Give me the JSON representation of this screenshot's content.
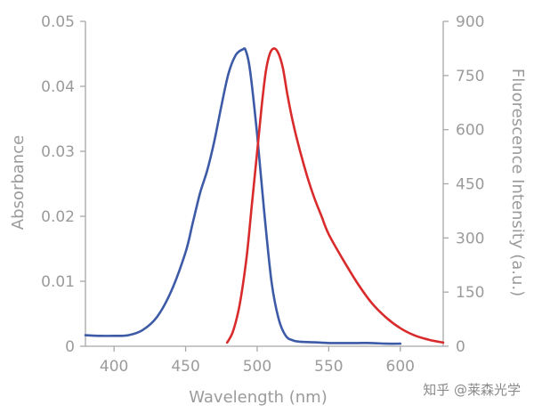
{
  "chart_data": {
    "type": "line",
    "xlabel": "Wavelength (nm)",
    "ylabel_left": "Absorbance",
    "ylabel_right": "Fluorescence Intensity (a.u.)",
    "xlim": [
      380,
      630
    ],
    "ylim_left": [
      0,
      0.05
    ],
    "ylim_right": [
      0,
      900
    ],
    "x_ticks": [
      400,
      450,
      500,
      550,
      600
    ],
    "x_tick_labels": [
      "400",
      "450",
      "500",
      "550",
      "600"
    ],
    "y_left_ticks": [
      0,
      0.01,
      0.02,
      0.03,
      0.04,
      0.05
    ],
    "y_left_tick_labels": [
      "0",
      "0.01",
      "0.02",
      "0.03",
      "0.04",
      "0.05"
    ],
    "y_right_ticks": [
      0,
      150,
      300,
      450,
      600,
      750,
      900
    ],
    "y_right_tick_labels": [
      "0",
      "150",
      "300",
      "450",
      "600",
      "750",
      "900"
    ],
    "grid": false,
    "legend": "none",
    "series": [
      {
        "axis": "left",
        "color": "#3c5aa6",
        "x": [
          380,
          390,
          400,
          410,
          420,
          430,
          440,
          450,
          455,
          460,
          465,
          470,
          475,
          480,
          485,
          490,
          492,
          495,
          500,
          505,
          510,
          515,
          520,
          525,
          530,
          540,
          550,
          560,
          570,
          580,
          590,
          600
        ],
        "y": [
          0.0017,
          0.0016,
          0.0016,
          0.0017,
          0.0025,
          0.0045,
          0.0085,
          0.0145,
          0.019,
          0.0235,
          0.027,
          0.0315,
          0.037,
          0.042,
          0.0448,
          0.0457,
          0.0455,
          0.0425,
          0.0325,
          0.0205,
          0.01,
          0.0042,
          0.0016,
          0.0009,
          0.0007,
          0.0006,
          0.0005,
          0.0005,
          0.0005,
          0.0005,
          0.0004,
          0.0004
        ]
      },
      {
        "axis": "right",
        "color": "#d92b2b",
        "x": [
          479,
          483,
          487,
          490,
          493,
          496,
          500,
          503,
          506,
          509,
          512,
          515,
          518,
          521,
          525,
          530,
          535,
          540,
          545,
          550,
          560,
          570,
          580,
          590,
          600,
          610,
          620,
          630
        ],
        "y": [
          10,
          40,
          100,
          170,
          260,
          380,
          540,
          660,
          760,
          812,
          825,
          810,
          770,
          700,
          620,
          540,
          470,
          410,
          360,
          310,
          240,
          175,
          120,
          80,
          50,
          30,
          18,
          10
        ]
      }
    ]
  },
  "watermark": "知乎 @莱森光学"
}
